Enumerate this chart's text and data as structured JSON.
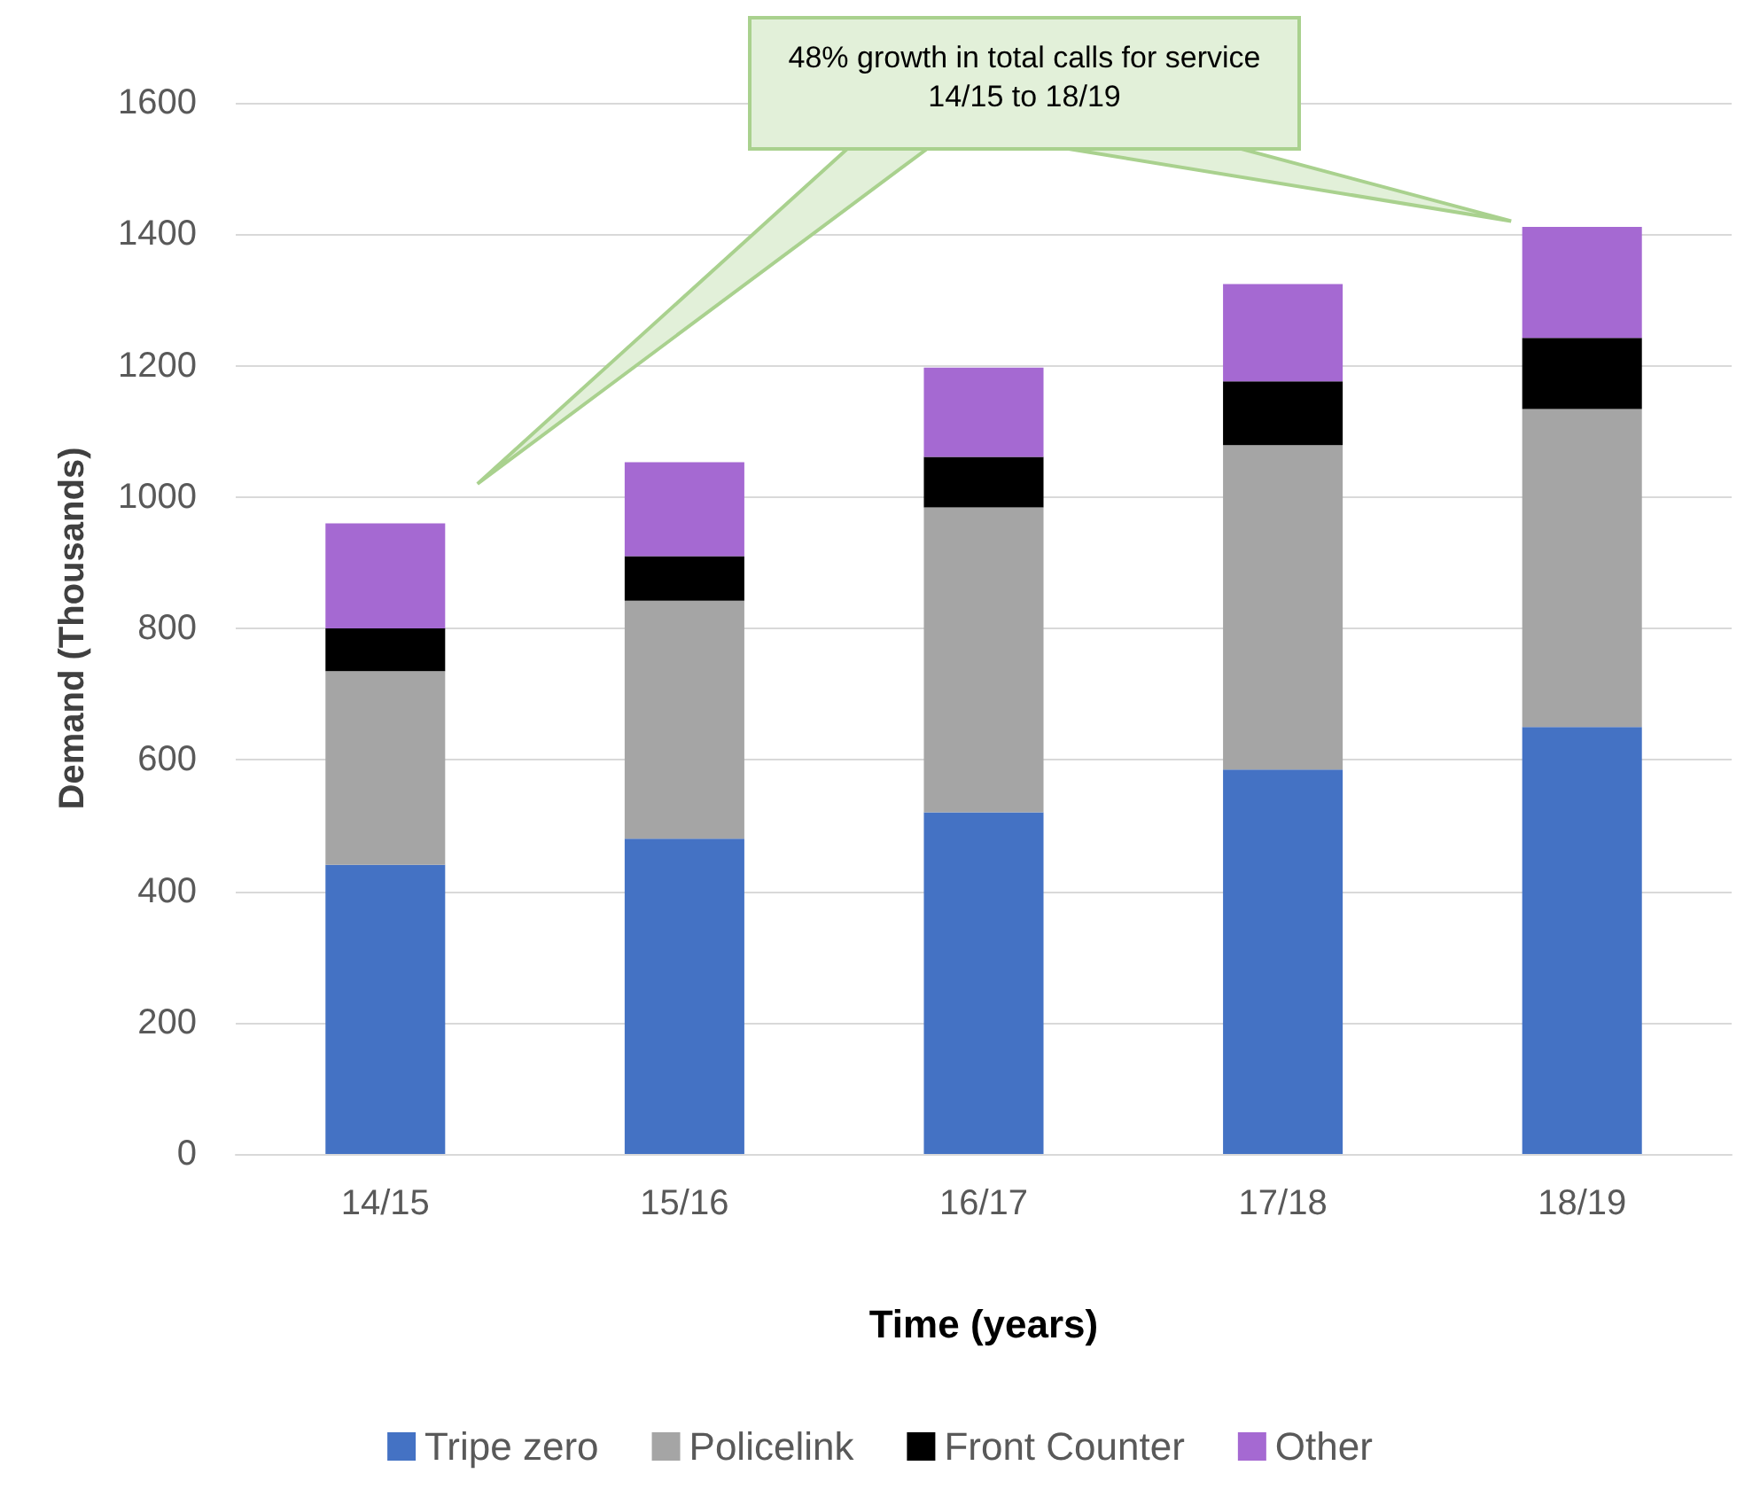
{
  "chart_data": {
    "type": "bar",
    "stacked": true,
    "xlabel": "Time (years)",
    "ylabel": "Demand (Thousands)",
    "categories": [
      "14/15",
      "15/16",
      "16/17",
      "17/18",
      "18/19"
    ],
    "series": [
      {
        "name": "Tripe zero",
        "color": "#4472c4",
        "values": [
          440,
          480,
          520,
          585,
          650
        ]
      },
      {
        "name": "Policelink",
        "color": "#a5a5a5",
        "values": [
          295,
          362,
          464,
          494,
          484
        ]
      },
      {
        "name": "Front Counter",
        "color": "#000000",
        "values": [
          65,
          68,
          77,
          97,
          108
        ]
      },
      {
        "name": "Other",
        "color": "#a569d2",
        "values": [
          160,
          143,
          136,
          148,
          169
        ]
      }
    ],
    "ylim": [
      0,
      1600
    ],
    "yticks": [
      0,
      200,
      400,
      600,
      800,
      1000,
      1200,
      1400,
      1600
    ],
    "grid": "y",
    "legend": "bottom",
    "annotations": [
      "48% growth in total calls for service 14/15 to 18/19"
    ]
  }
}
